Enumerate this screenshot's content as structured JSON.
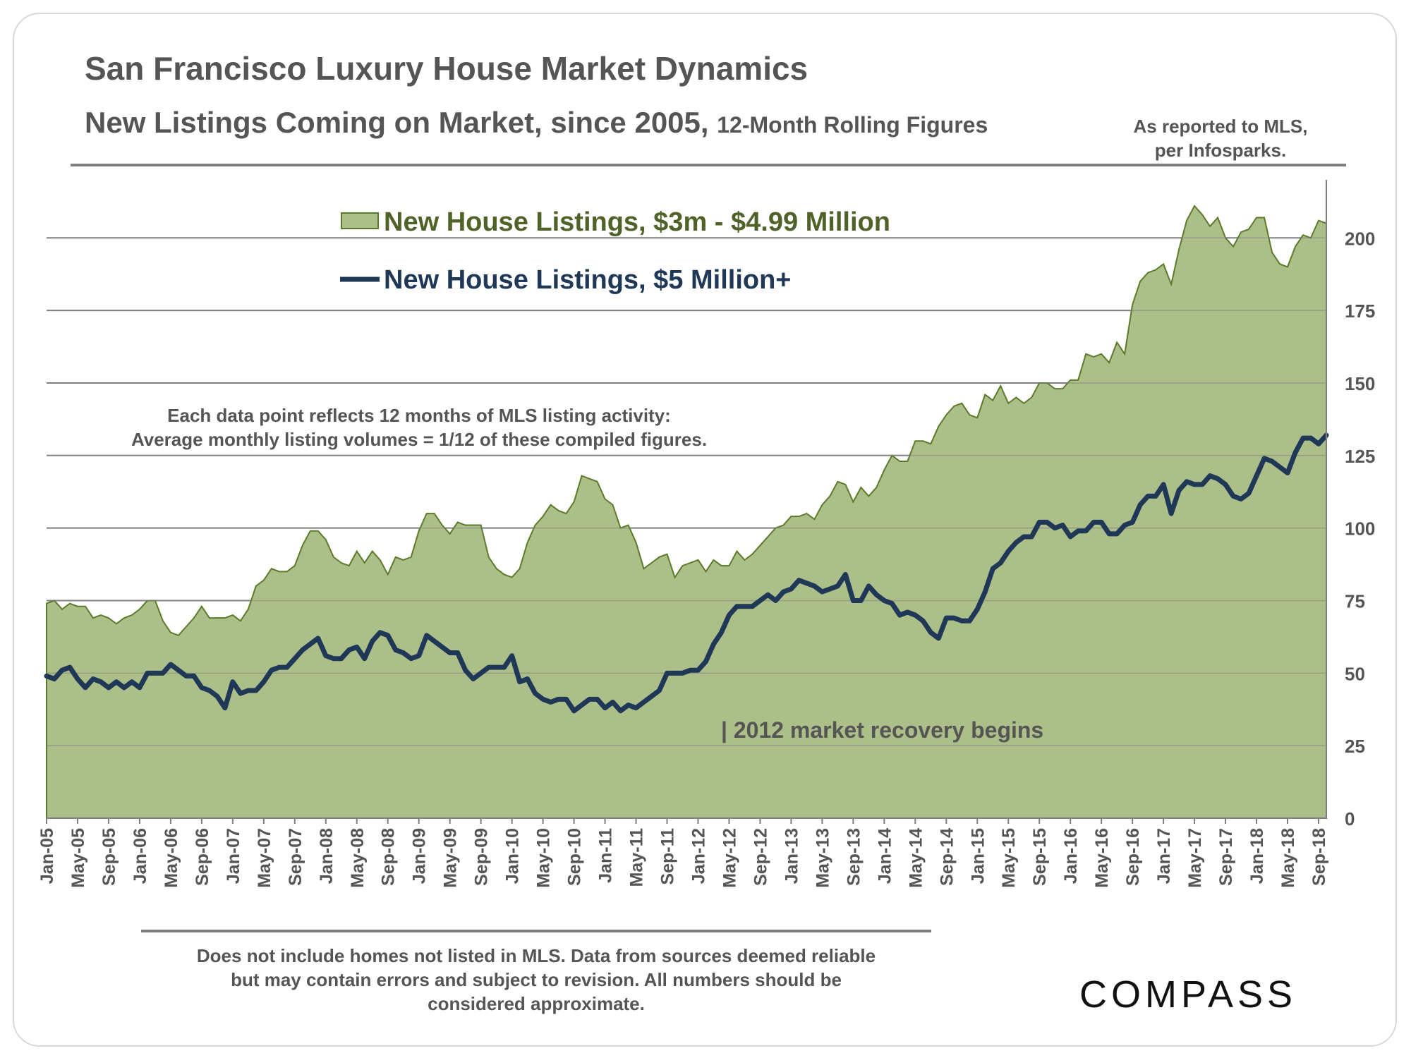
{
  "header": {
    "title": "San Francisco Luxury House Market Dynamics",
    "subtitle_main": "New Listings Coming on Market, since 2005,",
    "subtitle_small": "12-Month Rolling Figures",
    "source_line1": "As reported to MLS,",
    "source_line2": "per Infosparks."
  },
  "footer": {
    "disclaimer_line1": "Does not include homes not listed in MLS. Data from sources deemed reliable",
    "disclaimer_line2": "but may contain errors and subject to revision.  All numbers should be",
    "disclaimer_line3": "considered approximate.",
    "logo_text": "COMPASS"
  },
  "colors": {
    "area_fill": "#adbf88",
    "area_stroke": "#5b7a2a",
    "line": "#1f3857",
    "grid": "#7f7f7f",
    "text": "#555555",
    "legend_area_text": "#4f6228",
    "legend_line_text": "#1f3857"
  },
  "chart_data": {
    "type": "area+line",
    "title": "San Francisco Luxury House Market Dynamics",
    "ylim": [
      0,
      220
    ],
    "yticks": [
      0,
      25,
      50,
      75,
      100,
      125,
      150,
      175,
      200
    ],
    "y_axis_side": "right",
    "grid": true,
    "legend_position": "top-center",
    "x_tick_labels": [
      "Jan-05",
      "May-05",
      "Sep-05",
      "Jan-06",
      "May-06",
      "Sep-06",
      "Jan-07",
      "May-07",
      "Sep-07",
      "Jan-08",
      "May-08",
      "Sep-08",
      "Jan-09",
      "May-09",
      "Sep-09",
      "Jan-10",
      "May-10",
      "Sep-10",
      "Jan-11",
      "May-11",
      "Sep-11",
      "Jan-12",
      "May-12",
      "Sep-12",
      "Jan-13",
      "May-13",
      "Sep-13",
      "Jan-14",
      "May-14",
      "Sep-14",
      "Jan-15",
      "May-15",
      "Sep-15",
      "Jan-16",
      "May-16",
      "Sep-16",
      "Jan-17",
      "May-17",
      "Sep-17",
      "Jan-18",
      "May-18",
      "Sep-18"
    ],
    "annotations": {
      "note_line1": "Each data point reflects 12 months of MLS listing activity:",
      "note_line2": "Average monthly listing volumes = 1/12 of these compiled figures.",
      "recovery": "| 2012 market recovery begins"
    },
    "series": [
      {
        "name": "New House Listings, $3m - $4.99 Million",
        "kind": "area",
        "values": [
          74,
          75,
          72,
          74,
          73,
          73,
          69,
          70,
          69,
          67,
          69,
          70,
          72,
          75,
          75,
          68,
          64,
          63,
          66,
          69,
          73,
          69,
          69,
          69,
          70,
          68,
          72,
          80,
          82,
          86,
          85,
          85,
          87,
          94,
          99,
          99,
          96,
          90,
          88,
          87,
          92,
          88,
          92,
          89,
          84,
          90,
          89,
          90,
          99,
          105,
          105,
          101,
          98,
          102,
          101,
          101,
          101,
          90,
          86,
          84,
          83,
          86,
          95,
          101,
          104,
          108,
          106,
          105,
          109,
          118,
          117,
          116,
          110,
          108,
          100,
          101,
          95,
          86,
          88,
          90,
          91,
          83,
          87,
          88,
          89,
          85,
          89,
          87,
          87,
          92,
          89,
          91,
          94,
          97,
          100,
          101,
          104,
          104,
          105,
          103,
          108,
          111,
          116,
          115,
          109,
          114,
          111,
          114,
          120,
          125,
          123,
          123,
          130,
          130,
          129,
          135,
          139,
          142,
          143,
          139,
          138,
          146,
          144,
          149,
          143,
          145,
          143,
          145,
          150,
          150,
          148,
          148,
          151,
          151,
          160,
          159,
          160,
          157,
          164,
          160,
          177,
          185,
          188,
          189,
          191,
          184,
          196,
          206,
          211,
          208,
          204,
          207,
          200,
          197,
          202,
          203,
          207,
          207,
          195,
          191,
          190,
          197,
          201,
          200,
          206,
          205
        ]
      },
      {
        "name": "New House Listings, $5 Million+",
        "kind": "line",
        "values": [
          49,
          48,
          51,
          52,
          48,
          45,
          48,
          47,
          45,
          47,
          45,
          47,
          45,
          50,
          50,
          50,
          53,
          51,
          49,
          49,
          45,
          44,
          42,
          38,
          47,
          43,
          44,
          44,
          47,
          51,
          52,
          52,
          55,
          58,
          60,
          62,
          56,
          55,
          55,
          58,
          59,
          55,
          61,
          64,
          63,
          58,
          57,
          55,
          56,
          63,
          61,
          59,
          57,
          57,
          51,
          48,
          50,
          52,
          52,
          52,
          56,
          47,
          48,
          43,
          41,
          40,
          41,
          41,
          37,
          39,
          41,
          41,
          38,
          40,
          37,
          39,
          38,
          40,
          42,
          44,
          50,
          50,
          50,
          51,
          51,
          54,
          60,
          64,
          70,
          73,
          73,
          73,
          75,
          77,
          75,
          78,
          79,
          82,
          81,
          80,
          78,
          79,
          80,
          84,
          75,
          75,
          80,
          77,
          75,
          74,
          70,
          71,
          70,
          68,
          64,
          62,
          69,
          69,
          68,
          68,
          72,
          78,
          86,
          88,
          92,
          95,
          97,
          97,
          102,
          102,
          100,
          101,
          97,
          99,
          99,
          102,
          102,
          98,
          98,
          101,
          102,
          108,
          111,
          111,
          115,
          105,
          113,
          116,
          115,
          115,
          118,
          117,
          115,
          111,
          110,
          112,
          118,
          124,
          123,
          121,
          119,
          126,
          131,
          131,
          129,
          132
        ]
      }
    ]
  }
}
